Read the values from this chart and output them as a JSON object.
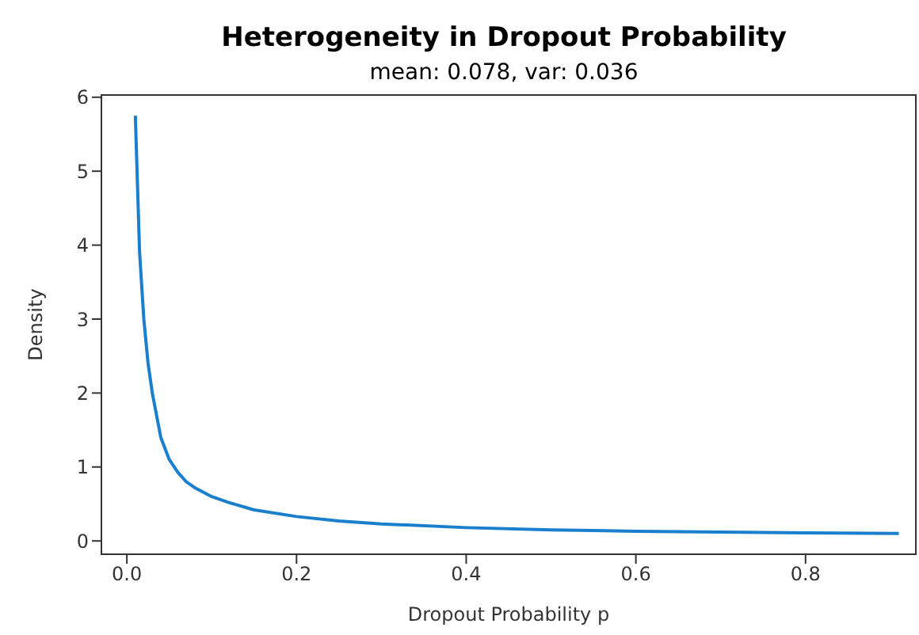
{
  "chart_data": {
    "type": "line",
    "title": "Heterogeneity in Dropout Probability",
    "subtitle": "mean: 0.078, var: 0.036",
    "xlabel": "Dropout Probability p",
    "ylabel": "Density",
    "x": [
      0.01,
      0.015,
      0.02,
      0.025,
      0.03,
      0.04,
      0.05,
      0.06,
      0.07,
      0.08,
      0.1,
      0.12,
      0.15,
      0.2,
      0.25,
      0.3,
      0.4,
      0.5,
      0.6,
      0.7,
      0.8,
      0.91
    ],
    "series": [
      {
        "color": "#1a7fcc",
        "values": [
          5.75,
          3.9,
          3.0,
          2.4,
          2.0,
          1.4,
          1.1,
          0.93,
          0.8,
          0.72,
          0.6,
          0.52,
          0.42,
          0.33,
          0.27,
          0.23,
          0.18,
          0.15,
          0.13,
          0.12,
          0.11,
          0.1
        ]
      }
    ],
    "xlim": [
      -0.03,
      0.93
    ],
    "xticks": [
      {
        "value": 0,
        "label": "0.0"
      },
      0.2,
      0.4,
      0.6,
      0.8
    ],
    "ylim": [
      -0.18,
      6.03
    ],
    "yticks": [
      0,
      1,
      2,
      3,
      4,
      5,
      6
    ],
    "grid": false,
    "legend": false,
    "marker": "none",
    "line_style": "solid"
  }
}
